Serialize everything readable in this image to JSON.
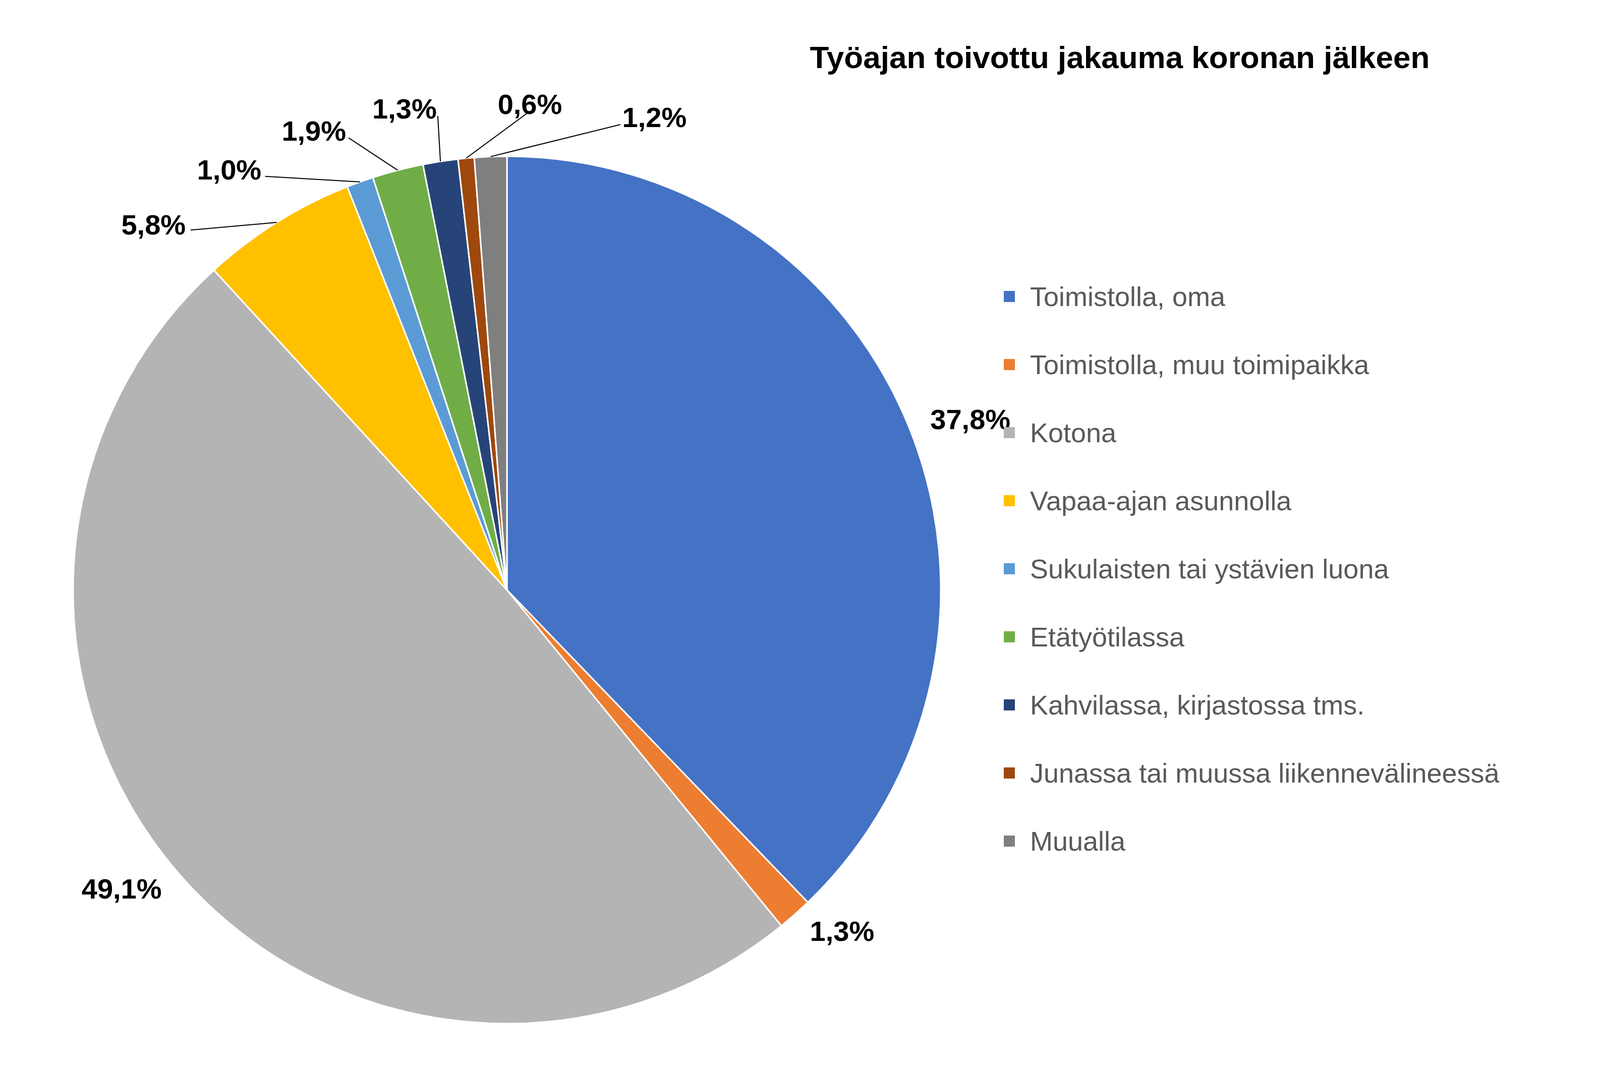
{
  "chart_data": {
    "type": "pie",
    "title": "Työajan toivottu jakauma koronan jälkeen",
    "categories": [
      "Toimistolla, oma",
      "Toimistolla, muu toimipaikka",
      "Kotona",
      "Vapaa-ajan asunnolla",
      "Sukulaisten tai ystävien luona",
      "Etätyötilassa",
      "Kahvilassa, kirjastossa tms.",
      "Junassa tai muussa liikennevälineessä",
      "Muualla"
    ],
    "values": [
      37.8,
      1.3,
      49.1,
      5.8,
      1.0,
      1.9,
      1.3,
      0.6,
      1.2
    ],
    "value_labels": [
      "37,8%",
      "1,3%",
      "49,1%",
      "5,8%",
      "1,0%",
      "1,9%",
      "1,3%",
      "0,6%",
      "1,2%"
    ],
    "colors": [
      "#4472c4",
      "#ed7d31",
      "#b4b4b4",
      "#ffc000",
      "#5b9bd5",
      "#70ad47",
      "#264478",
      "#9e480e",
      "#7f7f7f"
    ],
    "data_labels": true,
    "legend": "right"
  }
}
